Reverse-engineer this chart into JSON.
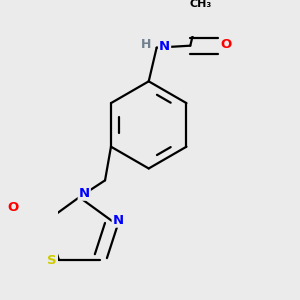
{
  "bg_color": "#ebebeb",
  "bond_color": "#000000",
  "bond_width": 1.6,
  "atom_colors": {
    "N": "#0000ff",
    "O": "#ff0000",
    "S": "#cccc00",
    "H": "#708090",
    "C": "#000000"
  },
  "font_size": 9.5
}
